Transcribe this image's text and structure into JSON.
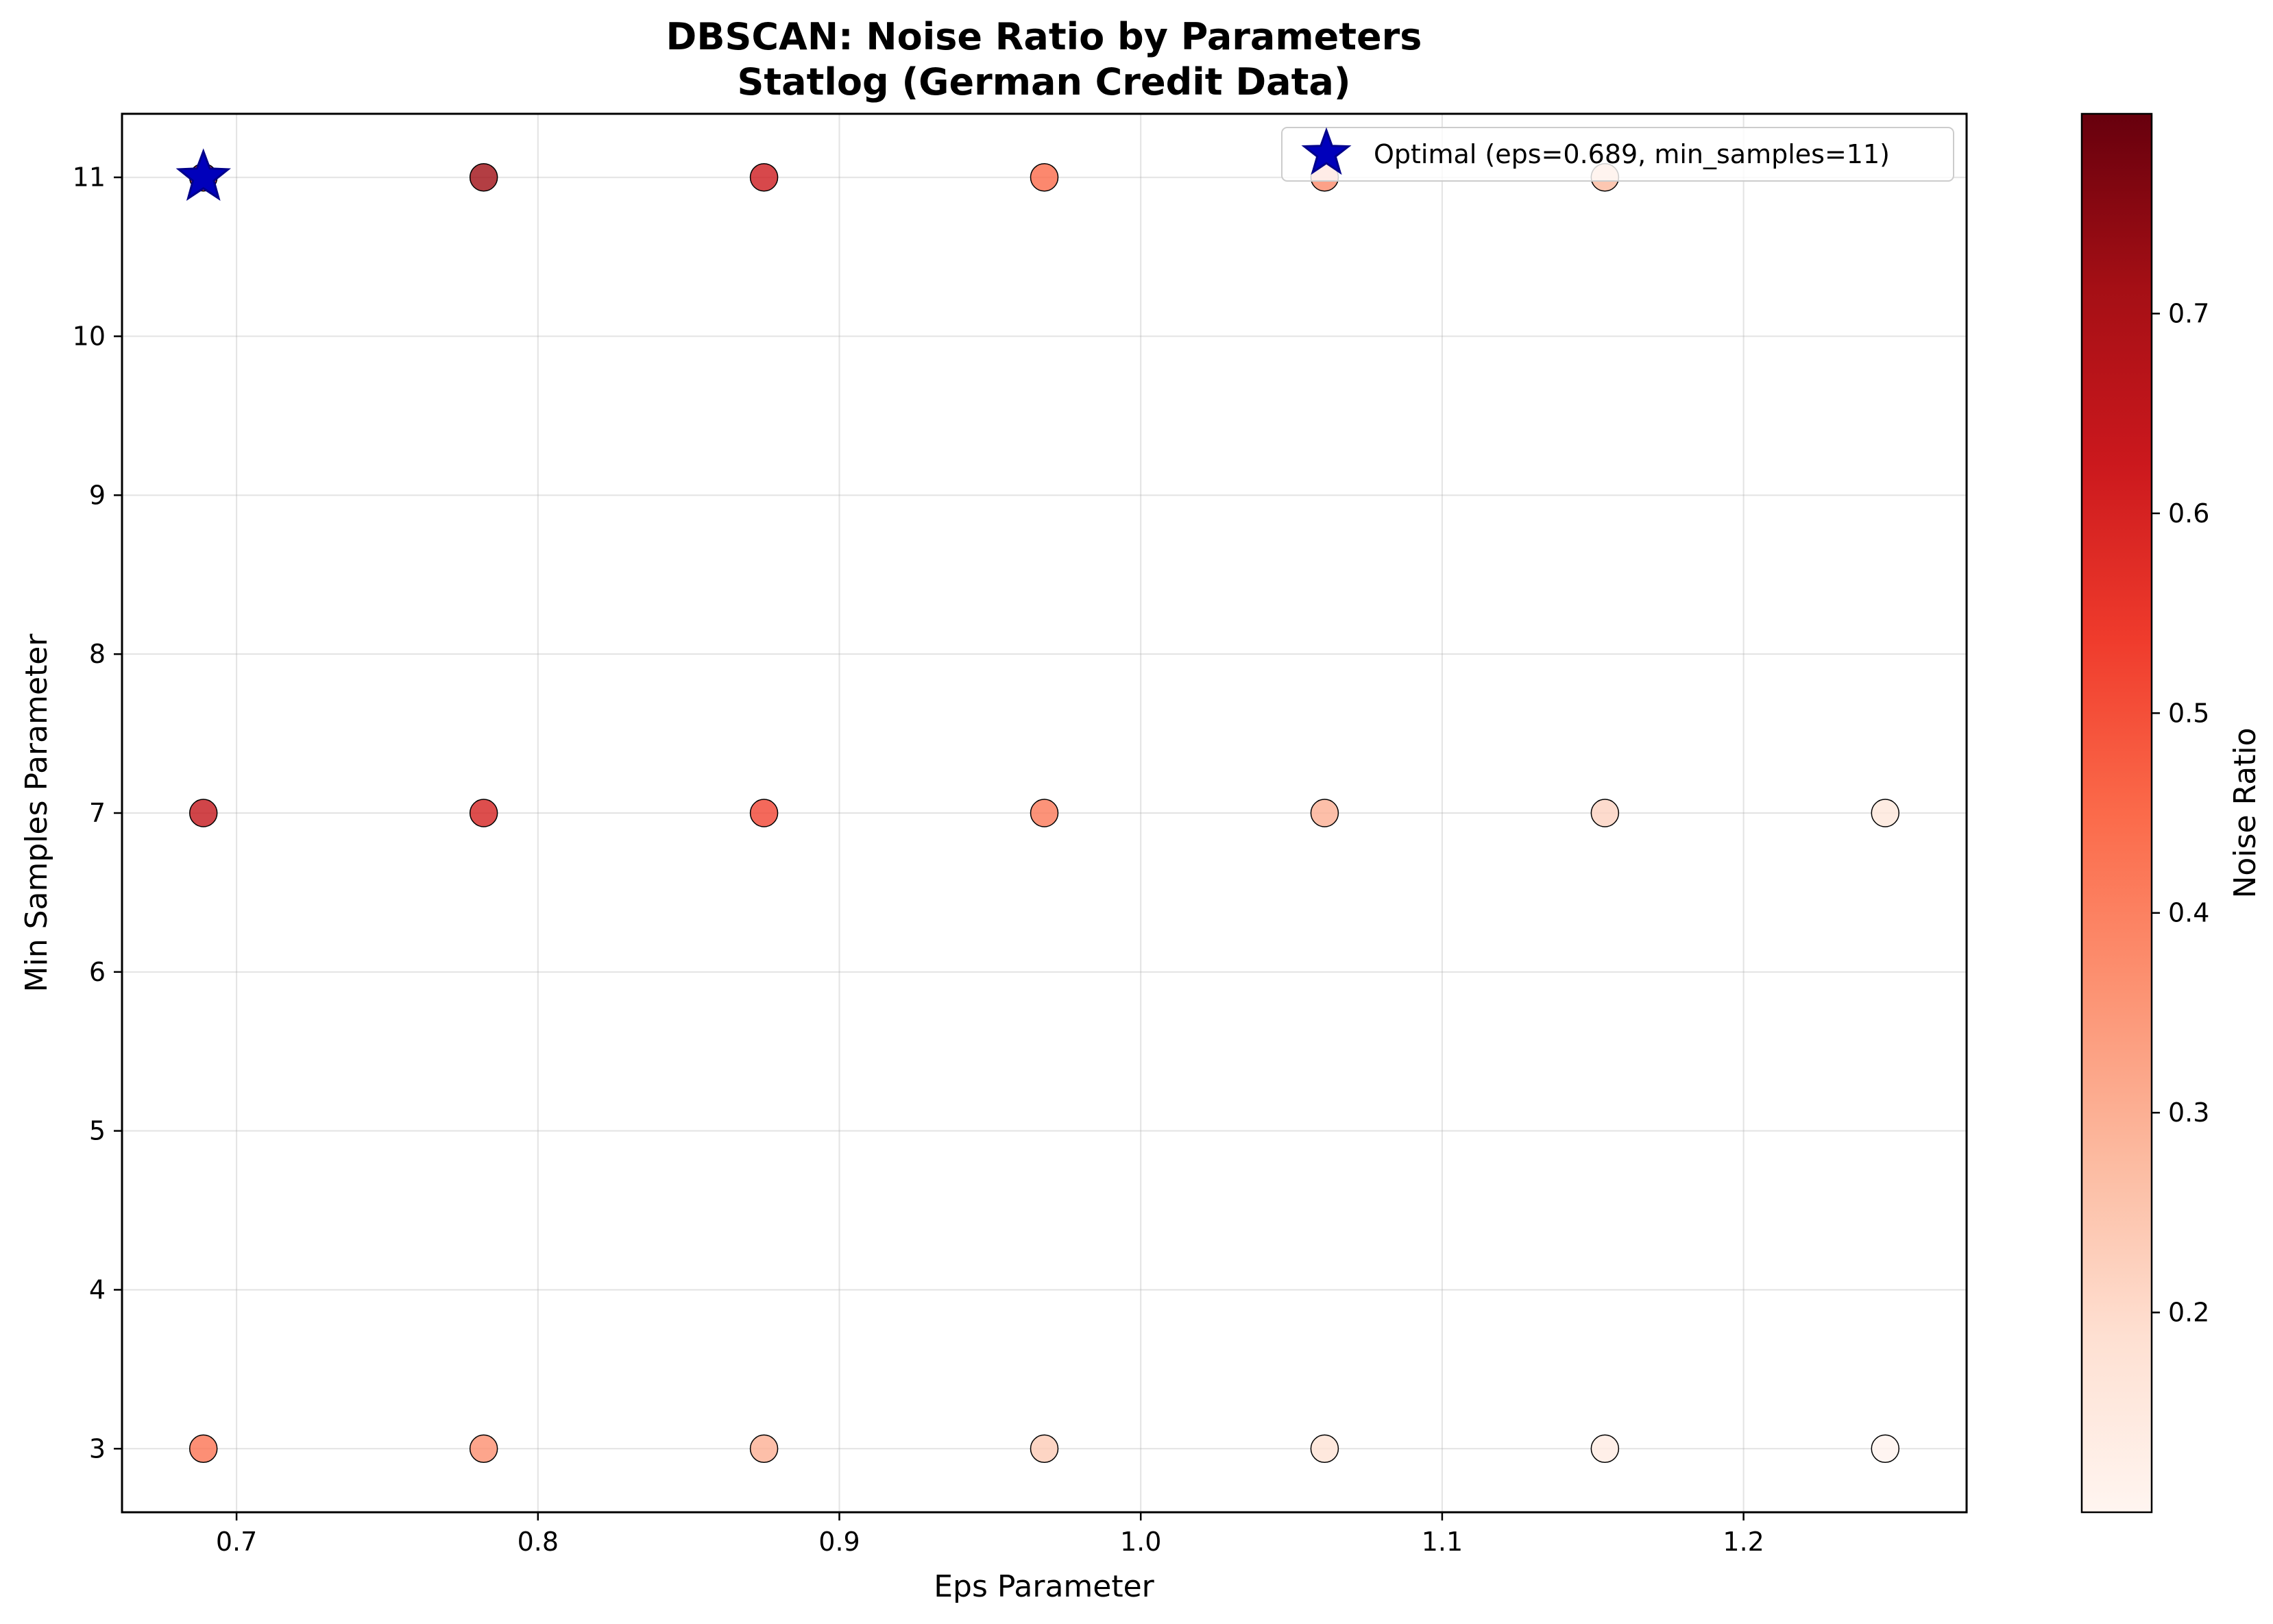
{
  "chart_data": {
    "type": "scatter",
    "title": "DBSCAN: Noise Ratio by Parameters",
    "subtitle": "Statlog (German Credit Data)",
    "xlabel": "Eps Parameter",
    "ylabel": "Min Samples Parameter",
    "xlim": [
      0.662,
      1.274
    ],
    "ylim": [
      2.6,
      11.4
    ],
    "x_ticks": [
      0.7,
      0.8,
      0.9,
      1.0,
      1.1,
      1.2
    ],
    "x_tick_labels": [
      "0.7",
      "0.8",
      "0.9",
      "1.0",
      "1.1",
      "1.2"
    ],
    "y_ticks": [
      3,
      4,
      5,
      6,
      7,
      8,
      9,
      10,
      11
    ],
    "y_tick_labels": [
      "3",
      "4",
      "5",
      "6",
      "7",
      "8",
      "9",
      "10",
      "11"
    ],
    "grid": true,
    "colormap": "Reds",
    "colorbar": {
      "label": "Noise Ratio",
      "range": [
        0.1,
        0.8
      ],
      "ticks": [
        0.2,
        0.3,
        0.4,
        0.5,
        0.6,
        0.7
      ],
      "tick_labels": [
        "0.2",
        "0.3",
        "0.4",
        "0.5",
        "0.6",
        "0.7"
      ]
    },
    "points": [
      {
        "x": 0.689,
        "y": 3,
        "noise_ratio": 0.43
      },
      {
        "x": 0.782,
        "y": 3,
        "noise_ratio": 0.37
      },
      {
        "x": 0.875,
        "y": 3,
        "noise_ratio": 0.3
      },
      {
        "x": 0.968,
        "y": 3,
        "noise_ratio": 0.24
      },
      {
        "x": 1.061,
        "y": 3,
        "noise_ratio": 0.18
      },
      {
        "x": 1.154,
        "y": 3,
        "noise_ratio": 0.14
      },
      {
        "x": 1.247,
        "y": 3,
        "noise_ratio": 0.11
      },
      {
        "x": 0.689,
        "y": 7,
        "noise_ratio": 0.64
      },
      {
        "x": 0.782,
        "y": 7,
        "noise_ratio": 0.6
      },
      {
        "x": 0.875,
        "y": 7,
        "noise_ratio": 0.52
      },
      {
        "x": 0.968,
        "y": 7,
        "noise_ratio": 0.42
      },
      {
        "x": 1.061,
        "y": 7,
        "noise_ratio": 0.3
      },
      {
        "x": 1.154,
        "y": 7,
        "noise_ratio": 0.22
      },
      {
        "x": 1.247,
        "y": 7,
        "noise_ratio": 0.16
      },
      {
        "x": 0.689,
        "y": 11,
        "noise_ratio": 0.66
      },
      {
        "x": 0.782,
        "y": 11,
        "noise_ratio": 0.72
      },
      {
        "x": 0.875,
        "y": 11,
        "noise_ratio": 0.62
      },
      {
        "x": 0.968,
        "y": 11,
        "noise_ratio": 0.45
      },
      {
        "x": 1.061,
        "y": 11,
        "noise_ratio": 0.38
      },
      {
        "x": 1.154,
        "y": 11,
        "noise_ratio": 0.28
      }
    ],
    "optimal": {
      "x": 0.689,
      "y": 11,
      "color": "#0000bb"
    },
    "legend": {
      "label": "Optimal (eps=0.689, min_samples=11)",
      "placement": "top-right"
    },
    "colors": {
      "marker_edge": "#000000",
      "grid": "#b0b0b0",
      "star": "#0000bb",
      "star_edge": "#00008b"
    }
  }
}
